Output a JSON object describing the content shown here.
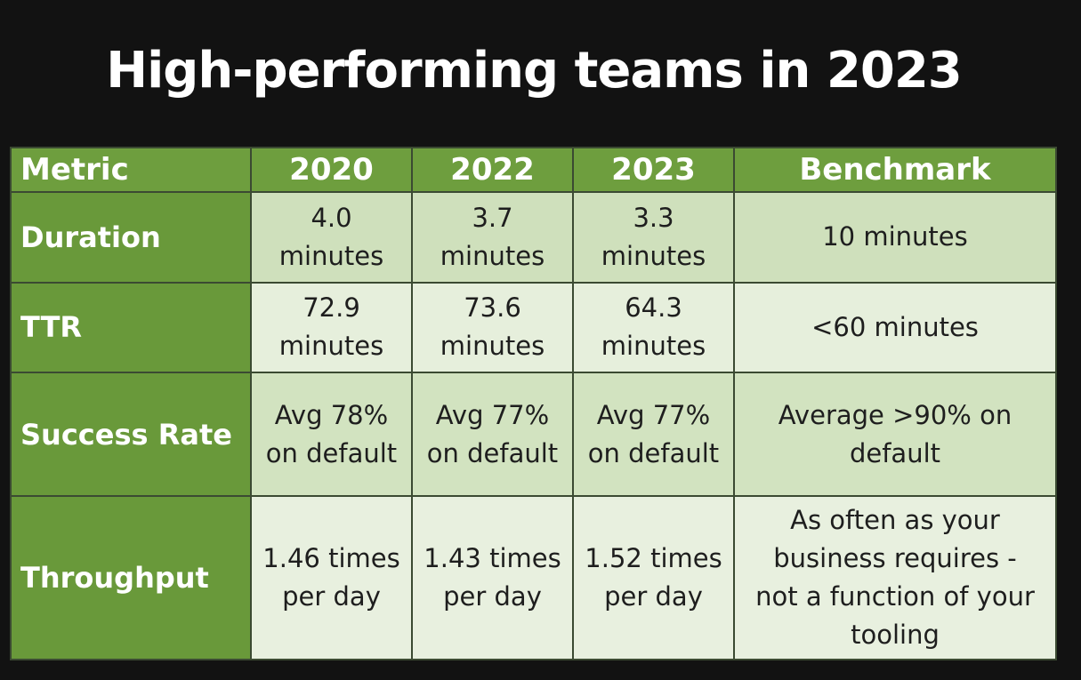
{
  "slide": {
    "title": "High-performing teams in 2023"
  },
  "table": {
    "headers": [
      "Metric",
      "2020",
      "2022",
      "2023",
      "Benchmark"
    ],
    "rows": [
      {
        "metric": "Duration",
        "y2020": [
          "4.0",
          "minutes"
        ],
        "y2022": [
          "3.7",
          "minutes"
        ],
        "y2023": [
          "3.3",
          "minutes"
        ],
        "benchmark": [
          "10 minutes"
        ]
      },
      {
        "metric": "TTR",
        "y2020": [
          "72.9",
          "minutes"
        ],
        "y2022": [
          "73.6",
          "minutes"
        ],
        "y2023": [
          "64.3",
          "minutes"
        ],
        "benchmark": [
          "<60 minutes"
        ]
      },
      {
        "metric": "Success Rate",
        "y2020": [
          "Avg 78%",
          "on default"
        ],
        "y2022": [
          "Avg 77%",
          "on default"
        ],
        "y2023": [
          "Avg 77%",
          "on default"
        ],
        "benchmark": [
          "Average >90% on",
          "default"
        ]
      },
      {
        "metric": "Throughput",
        "y2020": [
          "1.46 times",
          "per day"
        ],
        "y2022": [
          "1.43 times",
          "per day"
        ],
        "y2023": [
          "1.52 times",
          "per day"
        ],
        "benchmark": [
          "As often as your",
          "business requires -",
          "not a function of your",
          "tooling"
        ]
      }
    ]
  }
}
